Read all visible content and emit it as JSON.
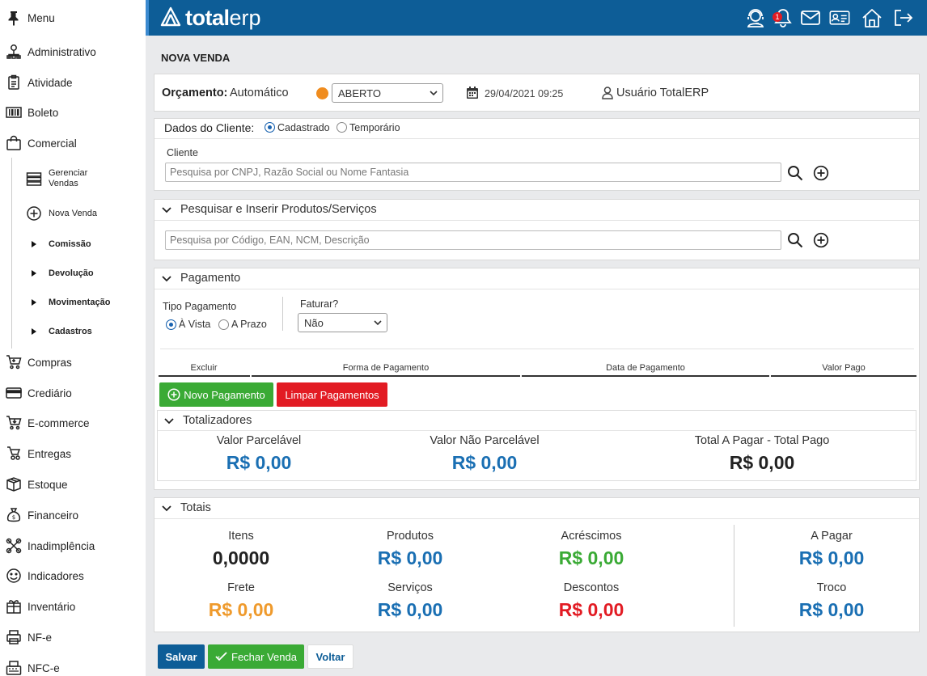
{
  "sidebar": {
    "menu_label": "Menu",
    "items": [
      {
        "label": "Administrativo",
        "icon": "org-chart-icon"
      },
      {
        "label": "Atividade",
        "icon": "clipboard-icon"
      },
      {
        "label": "Boleto",
        "icon": "barcode-icon"
      },
      {
        "label": "Comercial",
        "icon": "shopping-bag-icon"
      },
      {
        "label": "Compras",
        "icon": "cart-icon"
      },
      {
        "label": "Crediário",
        "icon": "credit-card-icon"
      },
      {
        "label": "E-commerce",
        "icon": "ecommerce-cart-icon"
      },
      {
        "label": "Entregas",
        "icon": "delivery-icon"
      },
      {
        "label": "Estoque",
        "icon": "box-icon"
      },
      {
        "label": "Financeiro",
        "icon": "money-bag-icon"
      },
      {
        "label": "Inadimplência",
        "icon": "broken-link-icon"
      },
      {
        "label": "Indicadores",
        "icon": "smiley-icon"
      },
      {
        "label": "Inventário",
        "icon": "gift-box-icon"
      },
      {
        "label": "NF-e",
        "icon": "printer-icon"
      },
      {
        "label": "NFC-e",
        "icon": "keyboard-icon"
      }
    ],
    "comercial_sub": {
      "gerenciar_vendas": "Gerenciar Vendas",
      "nova_venda": "Nova Venda",
      "comissao": "Comissão",
      "devolucao": "Devolução",
      "movimentacao": "Movimentação",
      "cadastros": "Cadastros"
    }
  },
  "header": {
    "logo_bold": "total",
    "logo_light": "erp",
    "notification_count": "1",
    "colors": {
      "bar": "#0d5d97",
      "accent": "#3b8ad0"
    }
  },
  "page_title": "NOVA VENDA",
  "orcamento": {
    "label": "Orçamento:",
    "value": "Automático",
    "status": "ABERTO",
    "status_color": "#f08c1e",
    "datetime": "29/04/2021 09:25",
    "user": "Usuário TotalERP"
  },
  "cliente": {
    "dados_label": "Dados do Cliente:",
    "option_cadastrado": "Cadastrado",
    "option_temporario": "Temporário",
    "field_label": "Cliente",
    "placeholder": "Pesquisa por CNPJ, Razão Social ou Nome Fantasia"
  },
  "produtos": {
    "title": "Pesquisar e Inserir Produtos/Serviços",
    "placeholder": "Pesquisa por Código, EAN, NCM, Descrição"
  },
  "pagamento": {
    "title": "Pagamento",
    "tipo_label": "Tipo Pagamento",
    "option_vista": "À Vista",
    "option_prazo": "A Prazo",
    "faturar_label": "Faturar?",
    "faturar_value": "Não",
    "columns": [
      "Excluir",
      "Forma de Pagamento",
      "Data de Pagamento",
      "Valor Pago"
    ],
    "novo_btn": "Novo Pagamento",
    "limpar_btn": "Limpar Pagamentos"
  },
  "totalizadores": {
    "title": "Totalizadores",
    "valor_parcelavel_label": "Valor Parcelável",
    "valor_parcelavel": "R$ 0,00",
    "valor_nao_parcelavel_label": "Valor Não Parcelável",
    "valor_nao_parcelavel": "R$ 0,00",
    "total_label": "Total A Pagar - Total Pago",
    "total": "R$ 0,00"
  },
  "totais": {
    "title": "Totais",
    "itens_label": "Itens",
    "itens": "0,0000",
    "produtos_label": "Produtos",
    "produtos": "R$ 0,00",
    "acrescimos_label": "Acréscimos",
    "acrescimos": "R$ 0,00",
    "a_pagar_label": "A Pagar",
    "a_pagar": "R$ 0,00",
    "frete_label": "Frete",
    "frete": "R$ 0,00",
    "servicos_label": "Serviços",
    "servicos": "R$ 0,00",
    "descontos_label": "Descontos",
    "descontos": "R$ 0,00",
    "troco_label": "Troco",
    "troco": "R$ 0,00",
    "colors": {
      "blue": "#1a6fb3",
      "green": "#3aaa35",
      "orange": "#ef9a2c",
      "red": "#e21b23",
      "dark": "#222222"
    }
  },
  "footer": {
    "salvar": "Salvar",
    "fechar_venda": "Fechar Venda",
    "voltar": "Voltar"
  }
}
